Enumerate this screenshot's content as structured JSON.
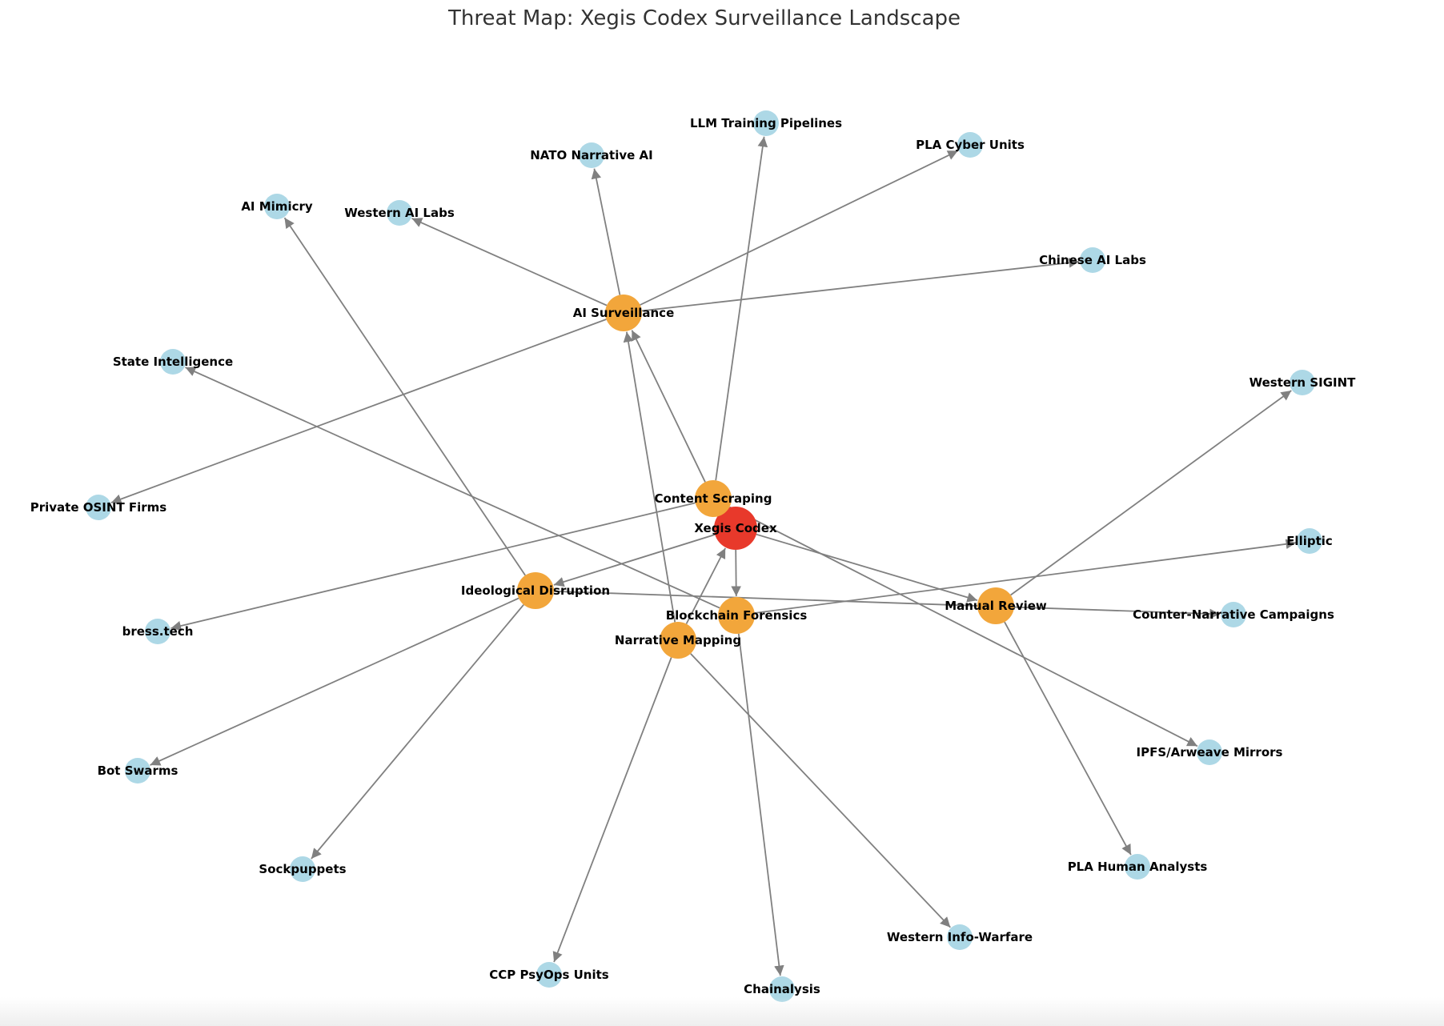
{
  "diagram": {
    "title": "Threat Map: Xegis Codex Surveillance Landscape",
    "colors": {
      "core": "#e8392b",
      "vector": "#f2a63b",
      "actor": "#add8e6",
      "edge": "#808080",
      "title": "#333333"
    },
    "nodes": [
      {
        "id": "xegis",
        "label": "Xegis Codex",
        "kind": "core"
      },
      {
        "id": "content_scraping",
        "label": "Content Scraping",
        "kind": "vector"
      },
      {
        "id": "ai_surveillance",
        "label": "AI Surveillance",
        "kind": "vector"
      },
      {
        "id": "ideological_disruption",
        "label": "Ideological Disruption",
        "kind": "vector"
      },
      {
        "id": "blockchain_forensics",
        "label": "Blockchain Forensics",
        "kind": "vector"
      },
      {
        "id": "narrative_mapping",
        "label": "Narrative Mapping",
        "kind": "vector"
      },
      {
        "id": "manual_review",
        "label": "Manual Review",
        "kind": "vector"
      },
      {
        "id": "llm_training",
        "label": "LLM Training Pipelines",
        "kind": "actor"
      },
      {
        "id": "nato_ai",
        "label": "NATO Narrative AI",
        "kind": "actor"
      },
      {
        "id": "pla_cyber",
        "label": "PLA Cyber Units",
        "kind": "actor"
      },
      {
        "id": "ai_mimicry",
        "label": "AI Mimicry",
        "kind": "actor"
      },
      {
        "id": "western_ai_labs",
        "label": "Western AI Labs",
        "kind": "actor"
      },
      {
        "id": "chinese_ai_labs",
        "label": "Chinese AI Labs",
        "kind": "actor"
      },
      {
        "id": "state_intel",
        "label": "State Intelligence",
        "kind": "actor"
      },
      {
        "id": "western_sigint",
        "label": "Western SIGINT",
        "kind": "actor"
      },
      {
        "id": "private_osint",
        "label": "Private OSINT Firms",
        "kind": "actor"
      },
      {
        "id": "elliptic",
        "label": "Elliptic",
        "kind": "actor"
      },
      {
        "id": "bress",
        "label": "bress.tech",
        "kind": "actor"
      },
      {
        "id": "counter_narrative",
        "label": "Counter-Narrative Campaigns",
        "kind": "actor"
      },
      {
        "id": "bot_swarms",
        "label": "Bot Swarms",
        "kind": "actor"
      },
      {
        "id": "ipfs",
        "label": "IPFS/Arweave Mirrors",
        "kind": "actor"
      },
      {
        "id": "sockpuppets",
        "label": "Sockpuppets",
        "kind": "actor"
      },
      {
        "id": "pla_human",
        "label": "PLA Human Analysts",
        "kind": "actor"
      },
      {
        "id": "western_infowar",
        "label": "Western Info-Warfare",
        "kind": "actor"
      },
      {
        "id": "ccp_psyops",
        "label": "CCP PsyOps Units",
        "kind": "actor"
      },
      {
        "id": "chainalysis",
        "label": "Chainalysis",
        "kind": "actor"
      }
    ],
    "edges": [
      {
        "from": "xegis",
        "to": "ideological_disruption"
      },
      {
        "from": "xegis",
        "to": "blockchain_forensics"
      },
      {
        "from": "xegis",
        "to": "manual_review"
      },
      {
        "from": "content_scraping",
        "to": "ai_surveillance"
      },
      {
        "from": "content_scraping",
        "to": "llm_training"
      },
      {
        "from": "content_scraping",
        "to": "bress"
      },
      {
        "from": "content_scraping",
        "to": "ipfs"
      },
      {
        "from": "ai_surveillance",
        "to": "nato_ai"
      },
      {
        "from": "ai_surveillance",
        "to": "western_ai_labs"
      },
      {
        "from": "ai_surveillance",
        "to": "pla_cyber"
      },
      {
        "from": "ai_surveillance",
        "to": "chinese_ai_labs"
      },
      {
        "from": "ai_surveillance",
        "to": "private_osint"
      },
      {
        "from": "ideological_disruption",
        "to": "ai_mimicry"
      },
      {
        "from": "ideological_disruption",
        "to": "bot_swarms"
      },
      {
        "from": "ideological_disruption",
        "to": "sockpuppets"
      },
      {
        "from": "ideological_disruption",
        "to": "counter_narrative"
      },
      {
        "from": "blockchain_forensics",
        "to": "state_intel"
      },
      {
        "from": "blockchain_forensics",
        "to": "elliptic"
      },
      {
        "from": "blockchain_forensics",
        "to": "chainalysis"
      },
      {
        "from": "narrative_mapping",
        "to": "ccp_psyops"
      },
      {
        "from": "narrative_mapping",
        "to": "western_infowar"
      },
      {
        "from": "narrative_mapping",
        "to": "ai_surveillance"
      },
      {
        "from": "narrative_mapping",
        "to": "xegis"
      },
      {
        "from": "manual_review",
        "to": "western_sigint"
      },
      {
        "from": "manual_review",
        "to": "pla_human"
      }
    ]
  }
}
